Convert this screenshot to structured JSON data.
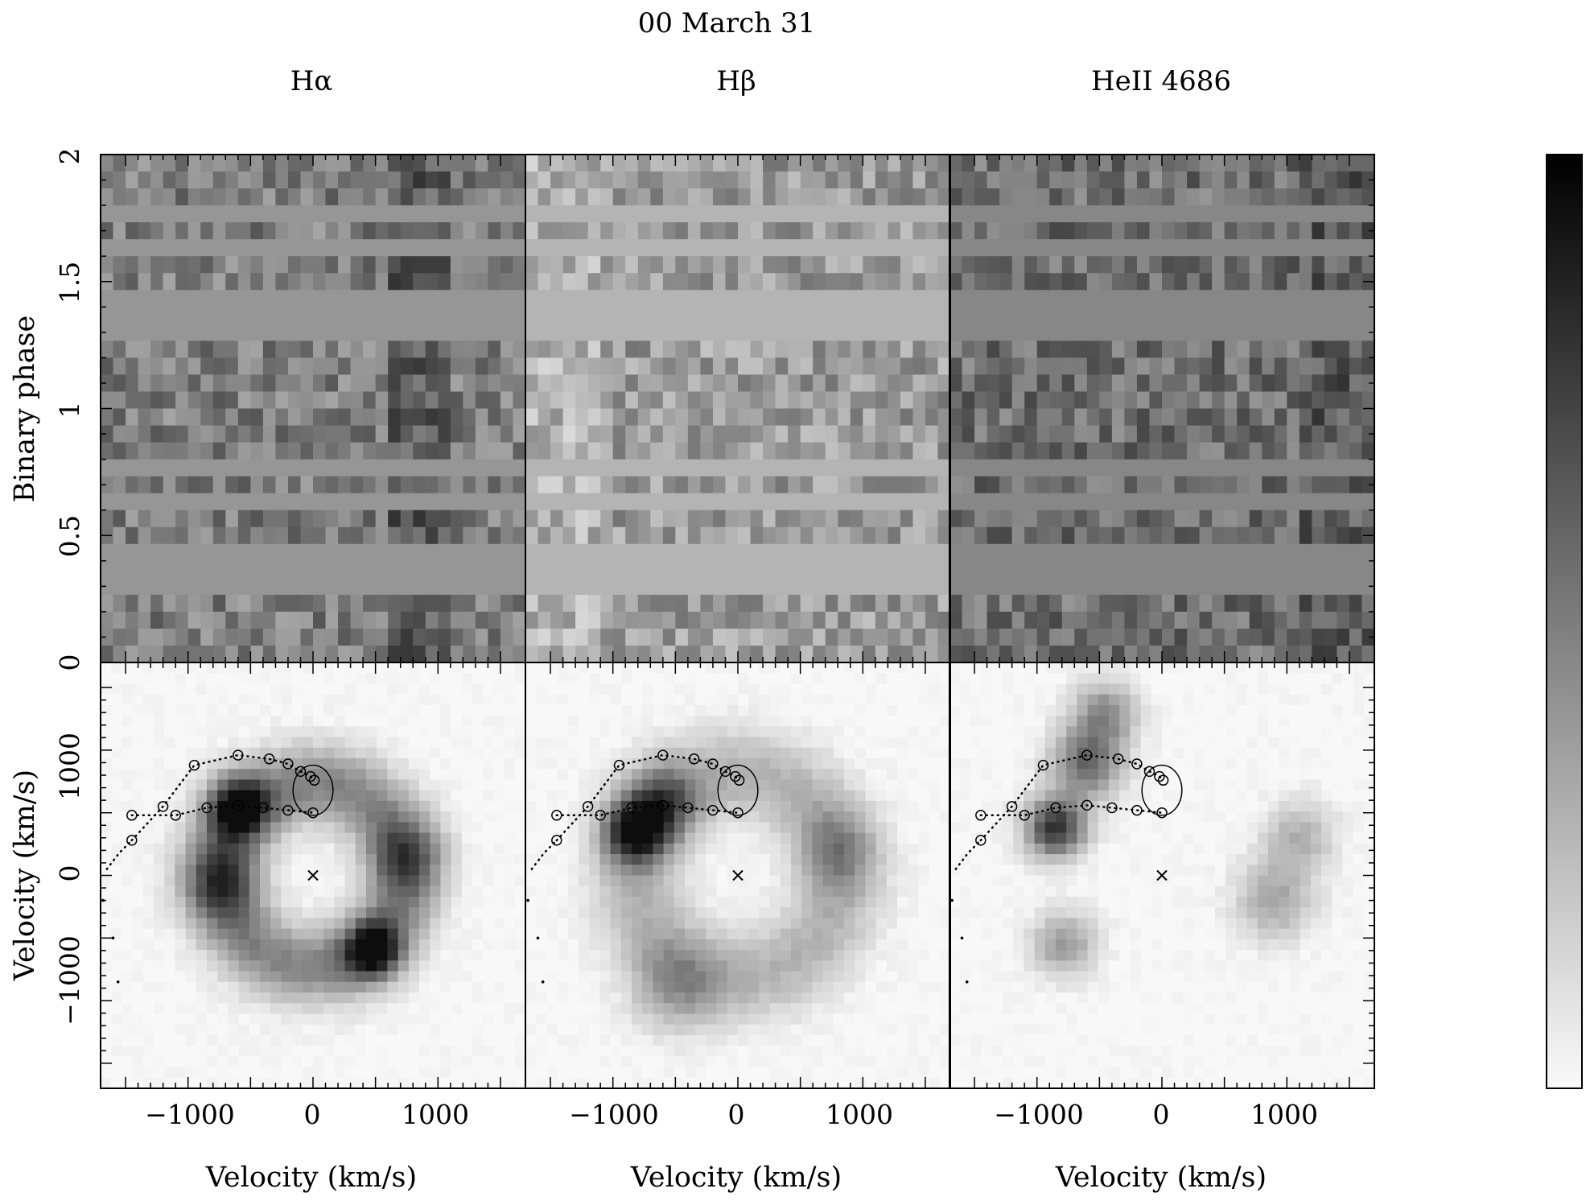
{
  "figure": {
    "date_label": "00 March 31"
  },
  "chart_data": [
    {
      "type": "heatmap",
      "panel": "trailed-spectrum",
      "title": "Hα",
      "xlim": [
        -1700,
        1700
      ],
      "ylim": [
        0,
        2
      ],
      "ylabel": "Binary phase",
      "y_ticks": [
        "0",
        "0.5",
        "1",
        "1.5",
        "2"
      ]
    },
    {
      "type": "heatmap",
      "panel": "trailed-spectrum",
      "title": "Hβ",
      "xlim": [
        -1700,
        1700
      ],
      "ylim": [
        0,
        2
      ]
    },
    {
      "type": "heatmap",
      "panel": "trailed-spectrum",
      "title": "HeII 4686",
      "xlim": [
        -1700,
        1700
      ],
      "ylim": [
        0,
        2
      ]
    },
    {
      "type": "heatmap",
      "panel": "doppler-map",
      "line": "Hα",
      "xlabel": "Velocity (km/s)",
      "ylabel": "Velocity (km/s)",
      "xlim": [
        -1700,
        1700
      ],
      "ylim": [
        -1700,
        1700
      ],
      "x_ticks": [
        "−1000",
        "0",
        "1000"
      ],
      "y_ticks": [
        "−1000",
        "0",
        "1000"
      ],
      "blobs": [
        {
          "vx": -600,
          "vy": 550,
          "sigma": 170,
          "amp": 0.85
        },
        {
          "vx": 480,
          "vy": -600,
          "sigma": 160,
          "amp": 0.8
        },
        {
          "vx": -750,
          "vy": -50,
          "sigma": 220,
          "amp": 0.45
        },
        {
          "vx": 750,
          "vy": 150,
          "sigma": 200,
          "amp": 0.4
        }
      ],
      "ring": {
        "radius": 720,
        "width": 220,
        "amp": 0.5
      }
    },
    {
      "type": "heatmap",
      "panel": "doppler-map",
      "line": "Hβ",
      "xlabel": "Velocity (km/s)",
      "xlim": [
        -1700,
        1700
      ],
      "ylim": [
        -1700,
        1700
      ],
      "x_ticks": [
        "−1000",
        "0",
        "1000"
      ],
      "blobs": [
        {
          "vx": -820,
          "vy": 350,
          "sigma": 180,
          "amp": 0.85
        },
        {
          "vx": -600,
          "vy": 600,
          "sigma": 200,
          "amp": 0.5
        },
        {
          "vx": -500,
          "vy": -900,
          "sigma": 250,
          "amp": 0.3
        },
        {
          "vx": 800,
          "vy": 200,
          "sigma": 220,
          "amp": 0.3
        }
      ],
      "ring": {
        "radius": 800,
        "width": 260,
        "amp": 0.3
      }
    },
    {
      "type": "heatmap",
      "panel": "doppler-map",
      "line": "HeII 4686",
      "xlabel": "Velocity (km/s)",
      "xlim": [
        -1700,
        1700
      ],
      "ylim": [
        -1700,
        1700
      ],
      "x_ticks": [
        "−1000",
        "0",
        "1000"
      ],
      "blobs": [
        {
          "vx": -850,
          "vy": 380,
          "sigma": 170,
          "amp": 0.85
        },
        {
          "vx": -600,
          "vy": 900,
          "sigma": 200,
          "amp": 0.6
        },
        {
          "vx": -450,
          "vy": 1300,
          "sigma": 180,
          "amp": 0.45
        },
        {
          "vx": -780,
          "vy": -550,
          "sigma": 180,
          "amp": 0.4
        },
        {
          "vx": 900,
          "vy": -200,
          "sigma": 220,
          "amp": 0.35
        },
        {
          "vx": 1100,
          "vy": 300,
          "sigma": 200,
          "amp": 0.3
        }
      ],
      "ring": {
        "radius": 0,
        "width": 0,
        "amp": 0
      }
    }
  ],
  "overlays": {
    "center_marker": {
      "vx": 0,
      "vy": 0
    },
    "roche_lobe": {
      "vx": 0,
      "vy": 680,
      "rx": 160,
      "ry": 200
    },
    "stream_upper": [
      [
        -1450,
        280
      ],
      [
        -1200,
        550
      ],
      [
        -950,
        880
      ],
      [
        -600,
        960
      ],
      [
        -350,
        930
      ],
      [
        -200,
        890
      ],
      [
        -100,
        830
      ],
      [
        -20,
        790
      ],
      [
        10,
        760
      ]
    ],
    "stream_lower": [
      [
        -1450,
        480
      ],
      [
        -1100,
        480
      ],
      [
        -850,
        540
      ],
      [
        -600,
        560
      ],
      [
        -400,
        540
      ],
      [
        -200,
        520
      ],
      [
        0,
        500
      ]
    ],
    "stream_extension": [
      [
        -1650,
        50
      ],
      [
        -1550,
        180
      ],
      [
        -1450,
        280
      ]
    ],
    "stream_dots": [
      [
        -1680,
        -200
      ],
      [
        -1600,
        -500
      ],
      [
        -1560,
        -850
      ]
    ]
  }
}
